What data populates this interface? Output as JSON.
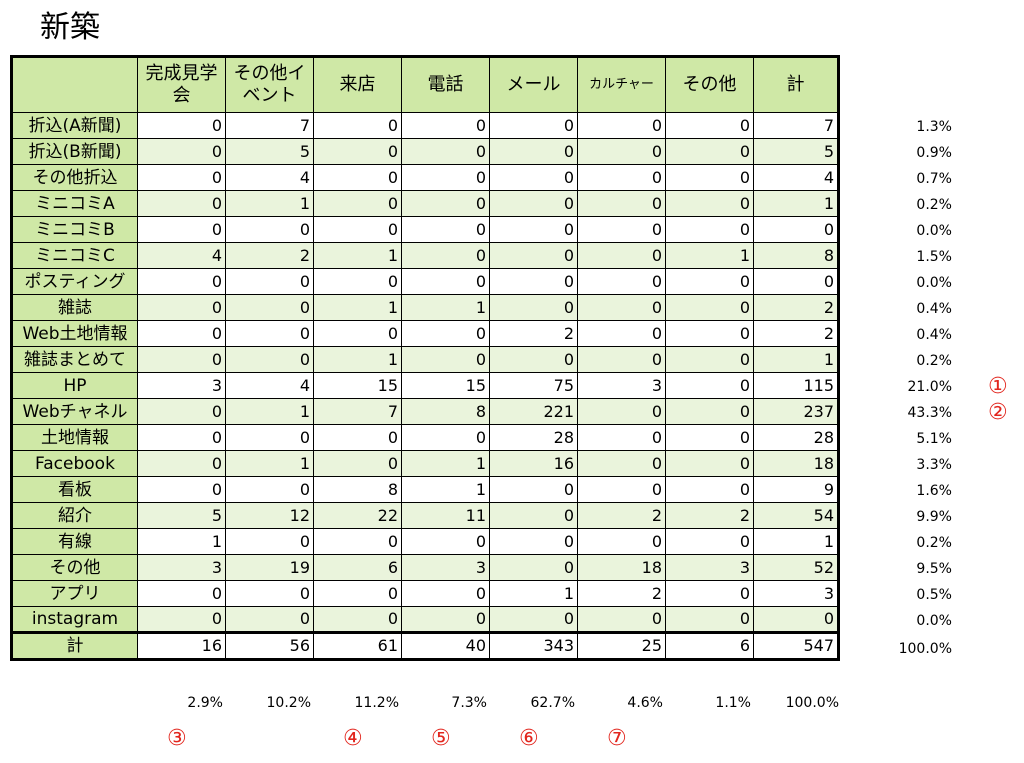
{
  "title": "新築",
  "columns": [
    "完成見学会",
    "その他イベント",
    "来店",
    "電話",
    "メール",
    "カルチャー",
    "その他",
    "計"
  ],
  "rows": [
    {
      "label": "折込(A新聞)",
      "values": [
        "0",
        "7",
        "0",
        "0",
        "0",
        "0",
        "0",
        "7"
      ],
      "pct": "1.3%"
    },
    {
      "label": "折込(B新聞)",
      "values": [
        "0",
        "5",
        "0",
        "0",
        "0",
        "0",
        "0",
        "5"
      ],
      "pct": "0.9%"
    },
    {
      "label": "その他折込",
      "values": [
        "0",
        "4",
        "0",
        "0",
        "0",
        "0",
        "0",
        "4"
      ],
      "pct": "0.7%"
    },
    {
      "label": "ミニコミA",
      "values": [
        "0",
        "1",
        "0",
        "0",
        "0",
        "0",
        "0",
        "1"
      ],
      "pct": "0.2%"
    },
    {
      "label": "ミニコミB",
      "values": [
        "0",
        "0",
        "0",
        "0",
        "0",
        "0",
        "0",
        "0"
      ],
      "pct": "0.0%"
    },
    {
      "label": "ミニコミC",
      "values": [
        "4",
        "2",
        "1",
        "0",
        "0",
        "0",
        "1",
        "8"
      ],
      "pct": "1.5%"
    },
    {
      "label": "ポスティング",
      "values": [
        "0",
        "0",
        "0",
        "0",
        "0",
        "0",
        "0",
        "0"
      ],
      "pct": "0.0%"
    },
    {
      "label": "雑誌",
      "values": [
        "0",
        "0",
        "1",
        "1",
        "0",
        "0",
        "0",
        "2"
      ],
      "pct": "0.4%"
    },
    {
      "label": "Web土地情報",
      "values": [
        "0",
        "0",
        "0",
        "0",
        "2",
        "0",
        "0",
        "2"
      ],
      "pct": "0.4%"
    },
    {
      "label": "雑誌まとめて",
      "values": [
        "0",
        "0",
        "1",
        "0",
        "0",
        "0",
        "0",
        "1"
      ],
      "pct": "0.2%"
    },
    {
      "label": "HP",
      "values": [
        "3",
        "4",
        "15",
        "15",
        "75",
        "3",
        "0",
        "115"
      ],
      "pct": "21.0%",
      "marker": "①"
    },
    {
      "label": "Webチャネル",
      "values": [
        "0",
        "1",
        "7",
        "8",
        "221",
        "0",
        "0",
        "237"
      ],
      "pct": "43.3%",
      "marker": "②"
    },
    {
      "label": "土地情報",
      "values": [
        "0",
        "0",
        "0",
        "0",
        "28",
        "0",
        "0",
        "28"
      ],
      "pct": "5.1%"
    },
    {
      "label": "Facebook",
      "values": [
        "0",
        "1",
        "0",
        "1",
        "16",
        "0",
        "0",
        "18"
      ],
      "pct": "3.3%"
    },
    {
      "label": "看板",
      "values": [
        "0",
        "0",
        "8",
        "1",
        "0",
        "0",
        "0",
        "9"
      ],
      "pct": "1.6%"
    },
    {
      "label": "紹介",
      "values": [
        "5",
        "12",
        "22",
        "11",
        "0",
        "2",
        "2",
        "54"
      ],
      "pct": "9.9%"
    },
    {
      "label": "有線",
      "values": [
        "1",
        "0",
        "0",
        "0",
        "0",
        "0",
        "0",
        "1"
      ],
      "pct": "0.2%"
    },
    {
      "label": "その他",
      "values": [
        "3",
        "19",
        "6",
        "3",
        "0",
        "18",
        "3",
        "52"
      ],
      "pct": "9.5%"
    },
    {
      "label": "アプリ",
      "values": [
        "0",
        "0",
        "0",
        "0",
        "1",
        "2",
        "0",
        "3"
      ],
      "pct": "0.5%"
    },
    {
      "label": "instagram",
      "values": [
        "0",
        "0",
        "0",
        "0",
        "0",
        "0",
        "0",
        "0"
      ],
      "pct": "0.0%"
    }
  ],
  "total": {
    "label": "計",
    "values": [
      "16",
      "56",
      "61",
      "40",
      "343",
      "25",
      "6",
      "547"
    ],
    "pct": "100.0%"
  },
  "column_pcts": [
    "2.9%",
    "10.2%",
    "11.2%",
    "7.3%",
    "62.7%",
    "4.6%",
    "1.1%",
    "100.0%"
  ],
  "column_markers": [
    "③",
    "",
    "④",
    "⑤",
    "⑥",
    "⑦",
    "",
    ""
  ],
  "marker_color": "#e2261e",
  "header_color": "#cfe8a6",
  "row_tint_color": "#eaf4dc"
}
